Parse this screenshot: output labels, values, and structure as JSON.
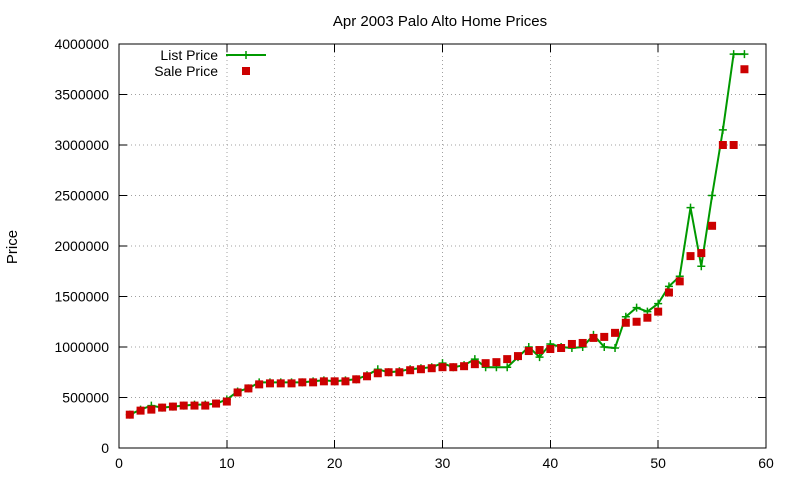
{
  "chart_data": {
    "type": "line",
    "title": "Apr 2003 Palo Alto Home Prices",
    "xlabel": "",
    "ylabel": "Price",
    "xlim": [
      0,
      60
    ],
    "ylim": [
      0,
      4000000
    ],
    "x_ticks": [
      0,
      10,
      20,
      30,
      40,
      50,
      60
    ],
    "y_ticks": [
      0,
      500000,
      1000000,
      1500000,
      2000000,
      2500000,
      3000000,
      3500000,
      4000000
    ],
    "grid": true,
    "legend_position": "top-left",
    "series": [
      {
        "name": "List Price",
        "style": "line-with-plus-markers",
        "color": "#009900",
        "x": [
          1,
          2,
          3,
          4,
          5,
          6,
          7,
          8,
          9,
          10,
          11,
          12,
          13,
          14,
          15,
          16,
          17,
          18,
          19,
          20,
          21,
          22,
          23,
          24,
          25,
          26,
          27,
          28,
          29,
          30,
          31,
          32,
          33,
          34,
          35,
          36,
          37,
          38,
          39,
          40,
          41,
          42,
          43,
          44,
          45,
          46,
          47,
          48,
          49,
          50,
          51,
          52,
          53,
          54,
          55,
          56,
          57,
          58
        ],
        "values": [
          330000,
          380000,
          420000,
          400000,
          410000,
          420000,
          430000,
          430000,
          440000,
          480000,
          560000,
          590000,
          650000,
          650000,
          650000,
          650000,
          650000,
          660000,
          670000,
          660000,
          670000,
          680000,
          720000,
          780000,
          750000,
          760000,
          780000,
          790000,
          800000,
          840000,
          800000,
          820000,
          880000,
          800000,
          800000,
          800000,
          900000,
          1000000,
          900000,
          1030000,
          1000000,
          990000,
          1000000,
          1120000,
          1000000,
          990000,
          1300000,
          1390000,
          1350000,
          1430000,
          1600000,
          1700000,
          2380000,
          1800000,
          2500000,
          3150000,
          3900000,
          3900000
        ]
      },
      {
        "name": "Sale Price",
        "style": "square-markers",
        "color": "#cc0000",
        "x": [
          1,
          2,
          3,
          4,
          5,
          6,
          7,
          8,
          9,
          10,
          11,
          12,
          13,
          14,
          15,
          16,
          17,
          18,
          19,
          20,
          21,
          22,
          23,
          24,
          25,
          26,
          27,
          28,
          29,
          30,
          31,
          32,
          33,
          34,
          35,
          36,
          37,
          38,
          39,
          40,
          41,
          42,
          43,
          44,
          45,
          46,
          47,
          48,
          49,
          50,
          51,
          52,
          53,
          54,
          55,
          56,
          57,
          58
        ],
        "values": [
          330000,
          370000,
          380000,
          400000,
          410000,
          420000,
          420000,
          420000,
          440000,
          460000,
          550000,
          590000,
          630000,
          640000,
          640000,
          640000,
          650000,
          650000,
          660000,
          660000,
          660000,
          680000,
          710000,
          740000,
          750000,
          750000,
          770000,
          780000,
          790000,
          800000,
          800000,
          810000,
          830000,
          840000,
          850000,
          880000,
          910000,
          960000,
          970000,
          980000,
          990000,
          1030000,
          1040000,
          1090000,
          1100000,
          1140000,
          1240000,
          1250000,
          1290000,
          1350000,
          1540000,
          1650000,
          1900000,
          1930000,
          2200000,
          3000000,
          3000000,
          3750000
        ]
      }
    ]
  }
}
